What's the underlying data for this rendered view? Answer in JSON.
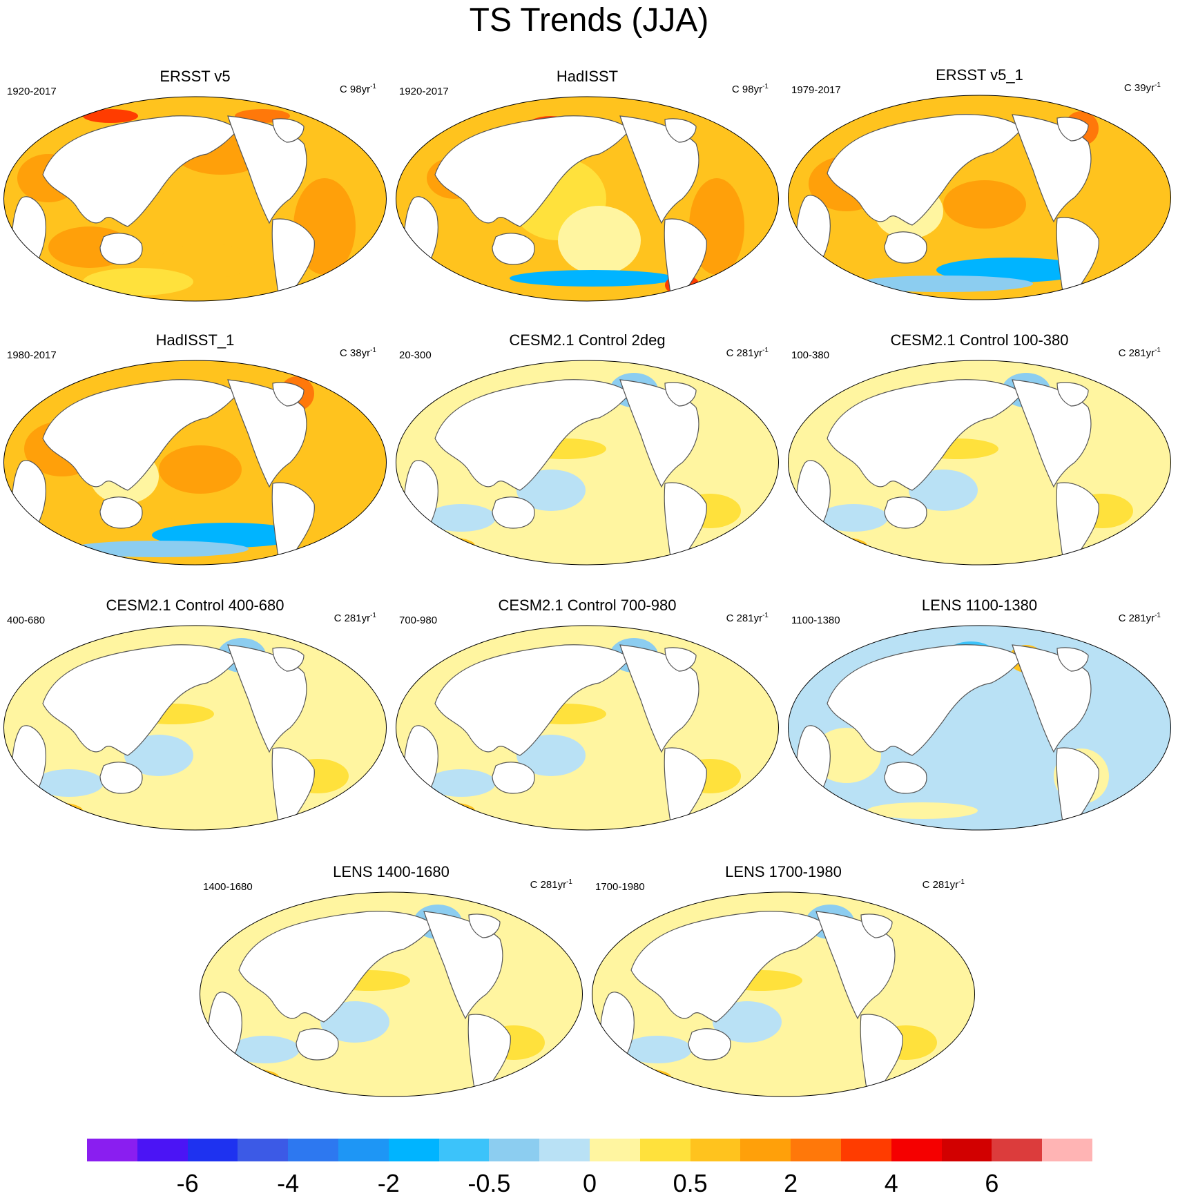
{
  "title": "TS Trends (JJA)",
  "panels": [
    {
      "id": "p1",
      "title": "ERSST v5",
      "left": "1920-2017",
      "right_prefix": "C 98yr",
      "right_sup": "-1",
      "pattern": "warm"
    },
    {
      "id": "p2",
      "title": "HadISST",
      "left": "1920-2017",
      "right_prefix": "C 98yr",
      "right_sup": "-1",
      "pattern": "warm-mixed"
    },
    {
      "id": "p3",
      "title": "ERSST v5_1",
      "left": "1979-2017",
      "right_prefix": "C 39yr",
      "right_sup": "-1",
      "pattern": "warm-cool-south"
    },
    {
      "id": "p4",
      "title": "HadISST_1",
      "left": "1980-2017",
      "right_prefix": "C 38yr",
      "right_sup": "-1",
      "pattern": "warm-cool-south"
    },
    {
      "id": "p5",
      "title": "CESM2.1 Control 2deg",
      "left": "20-300",
      "right_prefix": "C 281yr",
      "right_sup": "-1",
      "pattern": "neutral"
    },
    {
      "id": "p6",
      "title": "CESM2.1 Control 100-380",
      "left": "100-380",
      "right_prefix": "C 281yr",
      "right_sup": "-1",
      "pattern": "neutral"
    },
    {
      "id": "p7",
      "title": "CESM2.1 Control 400-680",
      "left": "400-680",
      "right_prefix": "C 281yr",
      "right_sup": "-1",
      "pattern": "neutral"
    },
    {
      "id": "p8",
      "title": "CESM2.1 Control 700-980",
      "left": "700-980",
      "right_prefix": "C 281yr",
      "right_sup": "-1",
      "pattern": "neutral"
    },
    {
      "id": "p9",
      "title": "LENS 1100-1380",
      "left": "1100-1380",
      "right_prefix": "C 281yr",
      "right_sup": "-1",
      "pattern": "neutral-cool"
    },
    {
      "id": "p10",
      "title": "LENS 1400-1680",
      "left": "1400-1680",
      "right_prefix": "C 281yr",
      "right_sup": "-1",
      "pattern": "neutral"
    },
    {
      "id": "p11",
      "title": "LENS 1700-1980",
      "left": "1700-1980",
      "right_prefix": "C 281yr",
      "right_sup": "-1",
      "pattern": "neutral"
    }
  ],
  "colorbar": {
    "colors": [
      "#8a1ef0",
      "#4b14f5",
      "#1e32f0",
      "#3c5ae6",
      "#2d78f0",
      "#1e96f5",
      "#00b4ff",
      "#3cc3fa",
      "#8ccdf0",
      "#b9e1f5",
      "#fff5a0",
      "#ffe13c",
      "#ffc31e",
      "#ffa00a",
      "#ff780a",
      "#ff3c00",
      "#f50000",
      "#d20000",
      "#dc3c3c",
      "#ffb4b4"
    ],
    "labels": [
      {
        "text": "-6",
        "boundary": 2
      },
      {
        "text": "-4",
        "boundary": 4
      },
      {
        "text": "-2",
        "boundary": 6
      },
      {
        "text": "-0.5",
        "boundary": 8
      },
      {
        "text": "0",
        "boundary": 10
      },
      {
        "text": "0.5",
        "boundary": 12
      },
      {
        "text": "2",
        "boundary": 14
      },
      {
        "text": "4",
        "boundary": 16
      },
      {
        "text": "6",
        "boundary": 18
      }
    ]
  }
}
